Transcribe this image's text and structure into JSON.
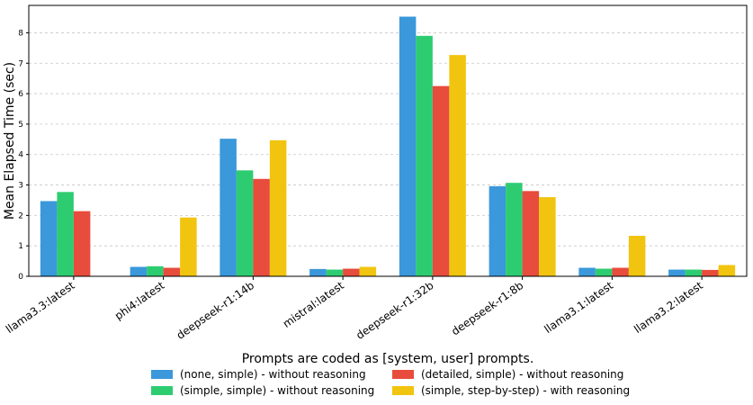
{
  "chart_data": {
    "type": "bar",
    "title": "",
    "xlabel": "",
    "ylabel": "Mean Elapsed Time (sec)",
    "ylim": [
      0,
      8.9
    ],
    "yticks": [
      0,
      1,
      2,
      3,
      4,
      5,
      6,
      7,
      8
    ],
    "grid": "horizontal dashed",
    "categories": [
      "llama3.3:latest",
      "phi4:latest",
      "deepseek-r1:14b",
      "mistral:latest",
      "deepseek-r1:32b",
      "deepseek-r1:8b",
      "llama3.1:latest",
      "llama3.2:latest"
    ],
    "series": [
      {
        "name": "(none, simple) - without reasoning",
        "color": "#3a98db",
        "values": [
          2.47,
          0.31,
          4.52,
          0.24,
          8.53,
          2.96,
          0.28,
          0.22
        ]
      },
      {
        "name": "(simple, simple) - without reasoning",
        "color": "#2ecc71",
        "values": [
          2.77,
          0.33,
          3.48,
          0.22,
          7.9,
          3.07,
          0.25,
          0.22
        ]
      },
      {
        "name": "(detailed, simple) - without reasoning",
        "color": "#e74c3c",
        "values": [
          2.14,
          0.28,
          3.2,
          0.25,
          6.25,
          2.8,
          0.28,
          0.21
        ]
      },
      {
        "name": "(simple, step-by-step) - with reasoning",
        "color": "#f1c40f",
        "values": [
          0.0,
          1.93,
          4.47,
          0.31,
          7.27,
          2.6,
          1.33,
          0.37
        ]
      }
    ],
    "legend": {
      "title": "Prompts are coded as [system, user] prompts.",
      "placement": "bottom-center"
    }
  }
}
